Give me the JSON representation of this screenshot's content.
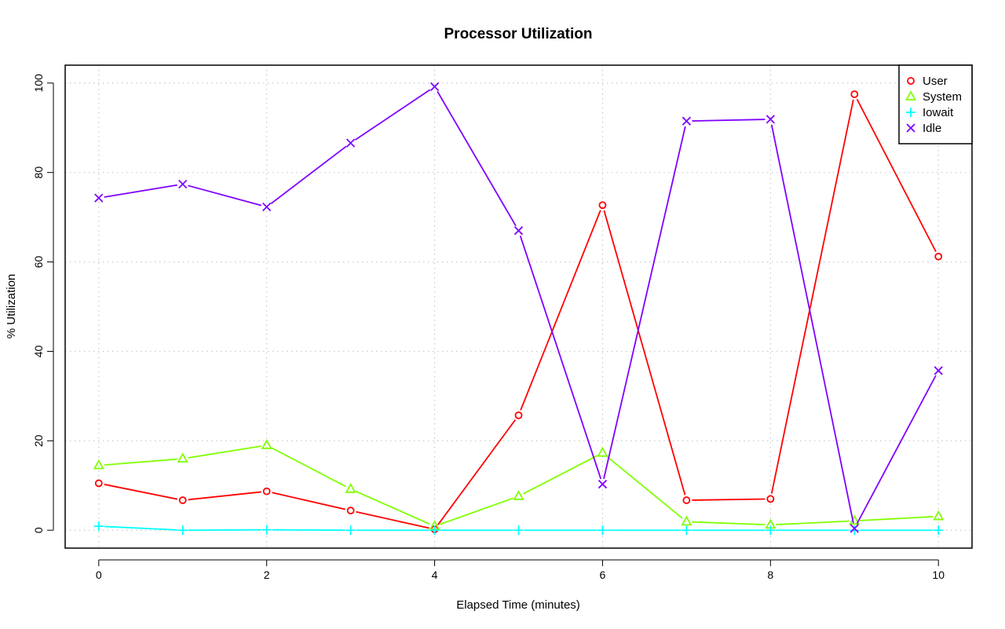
{
  "chart_data": {
    "type": "line",
    "title": "Processor Utilization",
    "xlabel": "Elapsed Time (minutes)",
    "ylabel": "% Utilization",
    "x": [
      0,
      1,
      2,
      3,
      4,
      5,
      6,
      7,
      8,
      9,
      10
    ],
    "xlim": [
      -0.4,
      10.4
    ],
    "ylim": [
      -4,
      104
    ],
    "xticks": [
      0,
      2,
      4,
      6,
      8,
      10
    ],
    "yticks": [
      0,
      20,
      40,
      60,
      80,
      100
    ],
    "grid": true,
    "legend_position": "top-right",
    "series": [
      {
        "name": "User",
        "color": "#ff0000",
        "marker": "circle",
        "values": [
          10.5,
          6.7,
          8.7,
          4.4,
          0.2,
          25.7,
          72.7,
          6.7,
          7.0,
          97.5,
          61.2
        ]
      },
      {
        "name": "System",
        "color": "#80ff00",
        "marker": "triangle",
        "values": [
          14.5,
          16.0,
          19.0,
          9.2,
          0.9,
          7.6,
          17.3,
          1.9,
          1.2,
          2.1,
          3.1
        ]
      },
      {
        "name": "Iowait",
        "color": "#00ffff",
        "marker": "plus",
        "values": [
          0.9,
          0.0,
          0.1,
          0.0,
          0.0,
          0.0,
          0.0,
          0.0,
          0.0,
          0.0,
          0.0
        ]
      },
      {
        "name": "Idle",
        "color": "#8000ff",
        "marker": "x",
        "values": [
          74.3,
          77.4,
          72.3,
          86.6,
          99.2,
          67.0,
          10.3,
          91.5,
          91.9,
          0.4,
          35.7
        ]
      }
    ]
  }
}
